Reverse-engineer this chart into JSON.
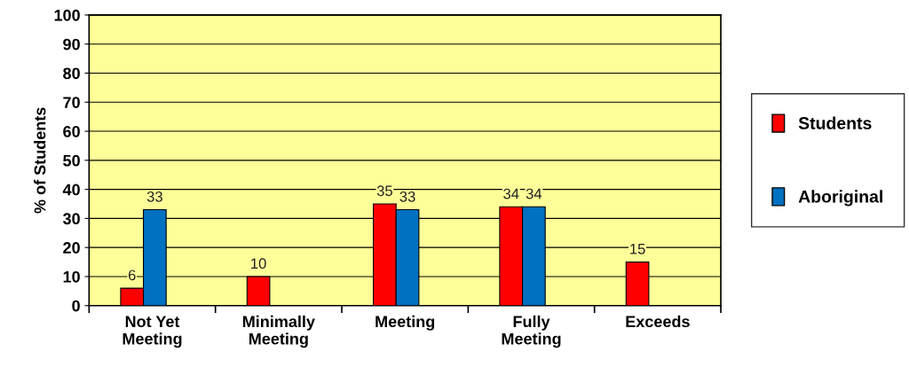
{
  "chart_data": {
    "type": "bar",
    "ylabel": "% of Students",
    "categories": [
      "Not Yet\nMeeting",
      "Minimally\nMeeting",
      "Meeting",
      "Fully\nMeeting",
      "Exceeds"
    ],
    "series": [
      {
        "name": "Students",
        "color": "#ff0000",
        "values": [
          6,
          10,
          35,
          34,
          15
        ]
      },
      {
        "name": "Aboriginal",
        "color": "#0070c0",
        "values": [
          33,
          null,
          33,
          34,
          null
        ]
      }
    ],
    "ylim": [
      0,
      100
    ],
    "yticks": [
      0,
      10,
      20,
      30,
      40,
      50,
      60,
      70,
      80,
      90,
      100
    ],
    "grid": "y",
    "legend": "right",
    "data_labels": true
  }
}
